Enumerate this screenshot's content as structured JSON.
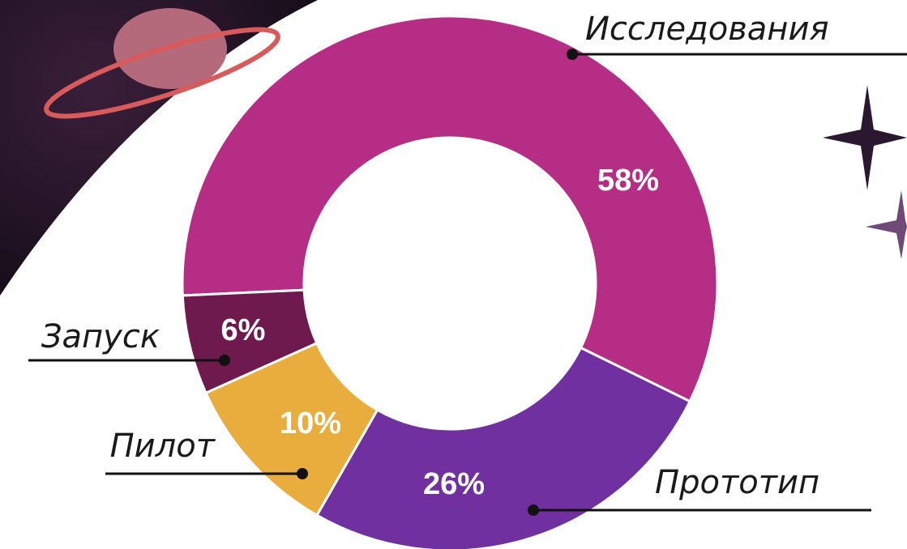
{
  "chart_data": {
    "type": "donut",
    "categories": [
      "Исследования",
      "Прототип",
      "Пилот",
      "Запуск"
    ],
    "values": [
      58,
      26,
      10,
      6
    ],
    "value_labels": [
      "58%",
      "26%",
      "10%",
      "6%"
    ],
    "colors": [
      "#b52d85",
      "#7030a0",
      "#e8ad3c",
      "#6e1a4f"
    ]
  }
}
